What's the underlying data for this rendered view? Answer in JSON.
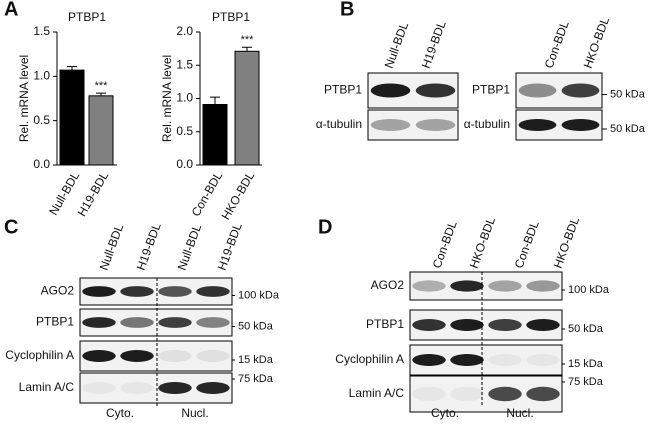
{
  "panel_labels": [
    "A",
    "B",
    "C",
    "D"
  ],
  "chart_data": [
    {
      "type": "bar",
      "title": "PTBP1",
      "y_label": "Rel. mRNA level",
      "categories": [
        "Null-BDL",
        "H19-BDL"
      ],
      "values": [
        1.07,
        0.78
      ],
      "errors": [
        0.04,
        0.03
      ],
      "significance": [
        null,
        "***"
      ],
      "colors": [
        "#000000",
        "#808080"
      ],
      "ylim": [
        0,
        1.5
      ],
      "yticks": [
        {
          "value": 0,
          "label": "0.0"
        },
        0.5,
        {
          "value": 1,
          "label": "1.0"
        },
        1.5
      ]
    },
    {
      "type": "bar",
      "title": "PTBP1",
      "y_label": "Rel. mRNA level",
      "categories": [
        "Con-BDL",
        "HKO-BDL"
      ],
      "values": [
        0.91,
        1.71
      ],
      "errors": [
        0.11,
        0.06
      ],
      "significance": [
        null,
        "***"
      ],
      "colors": [
        "#000000",
        "#808080"
      ],
      "ylim": [
        0,
        2
      ],
      "yticks": [
        {
          "value": 0,
          "label": "0.0"
        },
        0.5,
        {
          "value": 1,
          "label": "1.0"
        },
        1.5,
        {
          "value": 2,
          "label": "2.0"
        }
      ]
    }
  ],
  "blots": [
    {
      "lanes": [
        "Null-BDL",
        "H19-BDL"
      ],
      "rows": [
        "PTBP1",
        "α-tubulin"
      ]
    },
    {
      "lanes": [
        "Con-BDL",
        "HKO-BDL"
      ],
      "rows": [
        "PTBP1",
        "α-tubulin"
      ],
      "markers": [
        "50 kDa",
        "50 kDa"
      ]
    },
    {
      "lanes": [
        "Null-BDL",
        "H19-BDL",
        "Null-BDL",
        "H19-BDL"
      ],
      "rows": [
        "AGO2",
        "PTBP1",
        "Cyclophilin A",
        "Lamin A/C"
      ],
      "markers": [
        "100 kDa",
        "50 kDa",
        "15 kDa",
        "75 kDa"
      ],
      "fractions": [
        "Cyto.",
        "Nucl."
      ]
    },
    {
      "lanes": [
        "Con-BDL",
        "HKO-BDL",
        "Con-BDL",
        "HKO-BDL"
      ],
      "rows": [
        "AGO2",
        "PTBP1",
        "Cyclophilin A",
        "Lamin A/C"
      ],
      "markers": [
        "100 kDa",
        "50 kDa",
        "15 kDa",
        "75 kDa"
      ],
      "fractions": [
        "Cyto.",
        "Nucl."
      ]
    }
  ]
}
